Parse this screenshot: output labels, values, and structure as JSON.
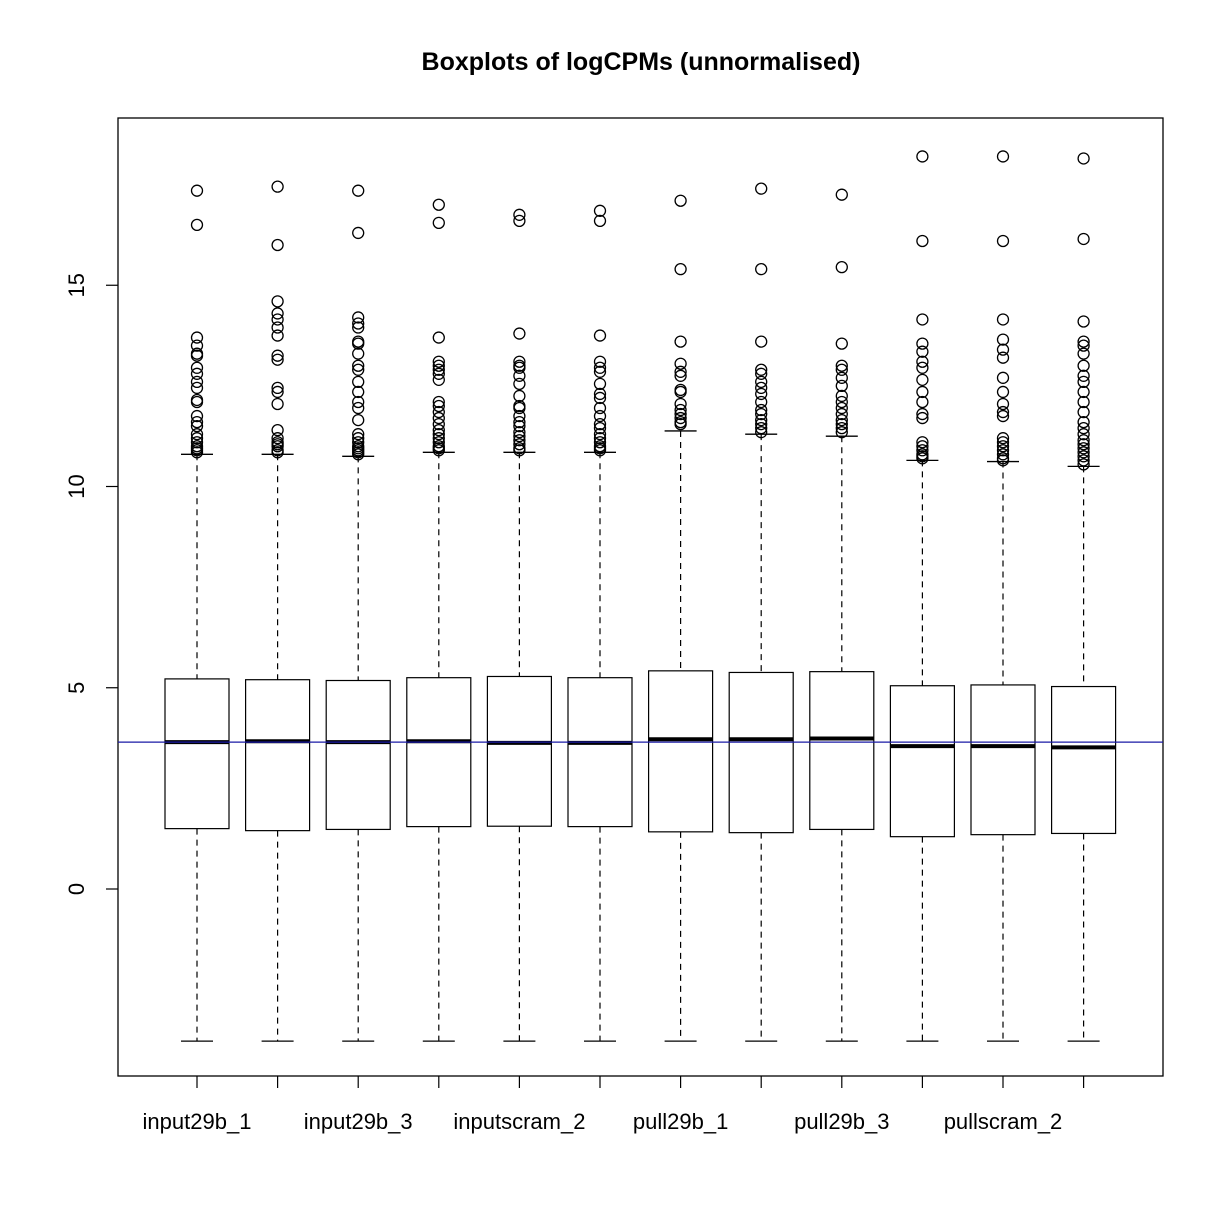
{
  "chart_data": {
    "type": "box",
    "title": "Boxplots of logCPMs (unnormalised)",
    "xlabel": "",
    "ylabel": "",
    "ylim": [
      -4.6,
      19.2
    ],
    "y_ticks": [
      0,
      5,
      10,
      15
    ],
    "x_tick_labels_shown": [
      "input29b_1",
      "",
      "input29b_3",
      "",
      "inputscram_2",
      "",
      "pull29b_1",
      "",
      "pull29b_3",
      "",
      "pullscram_2",
      ""
    ],
    "reference_line": {
      "y": 3.65,
      "color": "#1a1aa6"
    },
    "grid": false,
    "legend": "none",
    "boxes": [
      {
        "lower_whisker": -3.78,
        "q1": 1.5,
        "median": 3.65,
        "q3": 5.22,
        "upper_whisker": 10.8,
        "outliers": [
          17.35,
          16.5,
          13.7,
          13.5,
          13.3,
          13.25,
          12.95,
          12.8,
          12.6,
          12.45,
          12.15,
          12.1,
          11.75,
          11.6,
          11.5,
          11.3,
          11.2,
          11.1,
          11.0,
          10.95,
          10.9,
          10.85
        ]
      },
      {
        "lower_whisker": -3.78,
        "q1": 1.45,
        "median": 3.67,
        "q3": 5.2,
        "upper_whisker": 10.8,
        "outliers": [
          17.45,
          16.0,
          14.6,
          14.3,
          14.15,
          13.95,
          13.75,
          13.25,
          13.15,
          12.45,
          12.35,
          12.05,
          11.4,
          11.2,
          11.1,
          11.05,
          11.0,
          10.9,
          10.85
        ]
      },
      {
        "lower_whisker": -3.78,
        "q1": 1.48,
        "median": 3.65,
        "q3": 5.18,
        "upper_whisker": 10.75,
        "outliers": [
          17.35,
          16.3,
          14.2,
          14.05,
          13.95,
          13.6,
          13.55,
          13.3,
          13.0,
          12.9,
          12.6,
          12.35,
          12.1,
          11.95,
          11.65,
          11.3,
          11.2,
          11.1,
          11.0,
          10.95,
          10.9,
          10.85,
          10.8
        ]
      },
      {
        "lower_whisker": -3.78,
        "q1": 1.55,
        "median": 3.67,
        "q3": 5.25,
        "upper_whisker": 10.85,
        "outliers": [
          17.0,
          16.55,
          13.7,
          13.1,
          13.0,
          12.9,
          12.8,
          12.65,
          12.1,
          12.0,
          11.85,
          11.7,
          11.55,
          11.4,
          11.3,
          11.2,
          11.1,
          11.0,
          10.95,
          10.9
        ]
      },
      {
        "lower_whisker": -3.78,
        "q1": 1.56,
        "median": 3.63,
        "q3": 5.28,
        "upper_whisker": 10.85,
        "outliers": [
          16.75,
          16.6,
          13.8,
          13.1,
          13.0,
          12.95,
          12.75,
          12.55,
          12.25,
          12.0,
          11.95,
          11.75,
          11.6,
          11.5,
          11.35,
          11.25,
          11.15,
          11.05,
          10.95,
          10.9
        ]
      },
      {
        "lower_whisker": -3.78,
        "q1": 1.55,
        "median": 3.63,
        "q3": 5.25,
        "upper_whisker": 10.85,
        "outliers": [
          16.85,
          16.6,
          13.75,
          13.1,
          12.95,
          12.85,
          12.55,
          12.3,
          12.2,
          11.95,
          11.75,
          11.55,
          11.45,
          11.3,
          11.2,
          11.1,
          11.0,
          10.95,
          10.9
        ]
      },
      {
        "lower_whisker": -3.78,
        "q1": 1.42,
        "median": 3.72,
        "q3": 5.42,
        "upper_whisker": 11.38,
        "outliers": [
          17.1,
          15.4,
          13.6,
          13.05,
          12.85,
          12.75,
          12.4,
          12.35,
          12.05,
          11.9,
          11.8,
          11.7,
          11.6,
          11.55
        ]
      },
      {
        "lower_whisker": -3.78,
        "q1": 1.4,
        "median": 3.72,
        "q3": 5.38,
        "upper_whisker": 11.3,
        "outliers": [
          17.4,
          15.4,
          13.6,
          12.9,
          12.8,
          12.6,
          12.45,
          12.3,
          12.1,
          11.9,
          11.8,
          11.65,
          11.55,
          11.45,
          11.35
        ]
      },
      {
        "lower_whisker": -3.78,
        "q1": 1.48,
        "median": 3.74,
        "q3": 5.4,
        "upper_whisker": 11.25,
        "outliers": [
          17.25,
          15.45,
          13.55,
          13.0,
          12.9,
          12.7,
          12.5,
          12.25,
          12.1,
          11.95,
          11.8,
          11.65,
          11.55,
          11.45,
          11.35
        ]
      },
      {
        "lower_whisker": -3.78,
        "q1": 1.3,
        "median": 3.55,
        "q3": 5.05,
        "upper_whisker": 10.65,
        "outliers": [
          18.2,
          16.1,
          14.15,
          13.55,
          13.35,
          13.1,
          12.95,
          12.65,
          12.35,
          12.1,
          11.8,
          11.7,
          11.1,
          11.0,
          10.9,
          10.8,
          10.75,
          10.7
        ]
      },
      {
        "lower_whisker": -3.78,
        "q1": 1.35,
        "median": 3.55,
        "q3": 5.07,
        "upper_whisker": 10.62,
        "outliers": [
          18.2,
          16.1,
          14.15,
          13.65,
          13.4,
          13.2,
          12.7,
          12.35,
          12.05,
          11.85,
          11.75,
          11.2,
          11.1,
          11.0,
          10.9,
          10.8,
          10.7,
          10.65
        ]
      },
      {
        "lower_whisker": -3.78,
        "q1": 1.38,
        "median": 3.52,
        "q3": 5.03,
        "upper_whisker": 10.5,
        "outliers": [
          18.15,
          16.15,
          14.1,
          13.6,
          13.5,
          13.3,
          13.0,
          12.75,
          12.6,
          12.35,
          12.1,
          11.85,
          11.6,
          11.45,
          11.3,
          11.15,
          11.05,
          10.95,
          10.85,
          10.75,
          10.65,
          10.55
        ]
      }
    ]
  }
}
